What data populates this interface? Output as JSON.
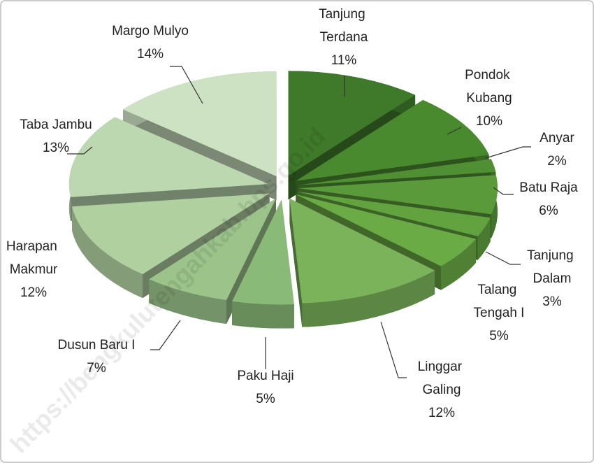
{
  "chart_data": {
    "type": "pie",
    "categories": [
      "Tanjung Terdana",
      "Pondok Kubang",
      "Anyar",
      "Batu Raja",
      "Tanjung Dalam",
      "Talang Tengah I",
      "Linggar Galing",
      "Paku Haji",
      "Dusun Baru I",
      "Harapan Makmur",
      "Taba Jambu",
      "Margo Mulyo"
    ],
    "values": [
      11,
      10,
      2,
      6,
      3,
      5,
      12,
      5,
      7,
      12,
      13,
      14
    ],
    "value_labels": [
      "11%",
      "10%",
      "2%",
      "6%",
      "3%",
      "5%",
      "12%",
      "5%",
      "7%",
      "12%",
      "13%",
      "14%"
    ],
    "colors": [
      "#3f7a2a",
      "#4a8a2f",
      "#508f33",
      "#5a9a3a",
      "#62a33f",
      "#6aab45",
      "#7ab35a",
      "#8aba78",
      "#9cc48a",
      "#b0d0a0",
      "#bcd8b0",
      "#cde2c2"
    ],
    "watermark": "https://bengkulutengahkab.bps.go.id"
  }
}
